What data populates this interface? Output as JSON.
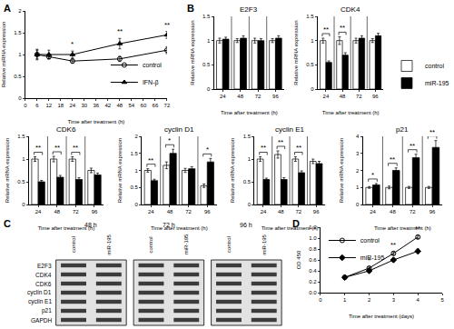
{
  "chart_data": [
    {
      "panel_label": "A",
      "type": "line",
      "x_label": "Time after treatment (h)",
      "y_label": "Relative miRNA expression",
      "x": [
        6,
        12,
        24,
        48,
        72
      ],
      "xlim": [
        0,
        72
      ],
      "xticks": [
        0,
        6,
        12,
        18,
        24,
        30,
        36,
        42,
        48,
        54,
        60,
        66,
        72
      ],
      "ylim": [
        0,
        2
      ],
      "yticks": [
        0,
        0.5,
        1,
        1.5,
        2
      ],
      "legend": "lower right",
      "significance": [
        null,
        null,
        "*",
        "**",
        "**"
      ],
      "series": [
        {
          "name": "control",
          "color": "#000000",
          "marker": "circle-open",
          "values": [
            1.0,
            0.95,
            0.85,
            0.9,
            1.1
          ],
          "error": [
            0.1,
            0.05,
            0.05,
            0.06,
            0.08
          ]
        },
        {
          "name": "IFN-β",
          "color": "#000000",
          "marker": "triangle-up",
          "values": [
            1.0,
            1.0,
            1.0,
            1.25,
            1.45
          ],
          "error": [
            0.12,
            0.1,
            0.08,
            0.12,
            0.08
          ]
        }
      ]
    },
    {
      "panel_label": "B",
      "type": "bar",
      "title": "E2F3",
      "x_label": "Time after treatment (h)",
      "y_label": "Relative mRNA expression",
      "categories": [
        "24",
        "48",
        "72",
        "96"
      ],
      "ylim": [
        0,
        1.5
      ],
      "yticks": [
        0,
        0.5,
        1,
        1.5
      ],
      "series": [
        {
          "name": "control",
          "color": "#ffffff",
          "values": [
            1,
            1,
            1,
            1
          ],
          "error": [
            0.05,
            0.04,
            0.05,
            0.04
          ]
        },
        {
          "name": "miR-195",
          "color": "#000000",
          "values": [
            1.03,
            1.05,
            1.0,
            1.05
          ],
          "error": [
            0.04,
            0.05,
            0.04,
            0.05
          ]
        }
      ]
    },
    {
      "type": "bar",
      "title": "CDK4",
      "x_label": "Time after treatment (h)",
      "y_label": "Relative mRNA expression",
      "categories": [
        "24",
        "48",
        "72",
        "96"
      ],
      "ylim": [
        0,
        1.5
      ],
      "yticks": [
        0,
        0.5,
        1,
        1.5
      ],
      "legend": "right",
      "significance": [
        "**",
        "**",
        null,
        null
      ],
      "series": [
        {
          "name": "control",
          "color": "#ffffff",
          "values": [
            1,
            1,
            1,
            1
          ],
          "error": [
            0.05,
            0.08,
            0.05,
            0.04
          ]
        },
        {
          "name": "miR-195",
          "color": "#000000",
          "values": [
            0.55,
            0.7,
            1.05,
            1.1
          ],
          "error": [
            0.03,
            0.05,
            0.05,
            0.05
          ]
        }
      ]
    },
    {
      "type": "bar",
      "title": "CDK6",
      "x_label": "Time after treatment (h)",
      "y_label": "Relative mRNA expression",
      "categories": [
        "24",
        "48",
        "72",
        "96"
      ],
      "ylim": [
        0,
        1.5
      ],
      "yticks": [
        0,
        0.5,
        1,
        1.5
      ],
      "significance": [
        "**",
        "**",
        "**",
        null
      ],
      "series": [
        {
          "name": "control",
          "color": "#ffffff",
          "values": [
            1,
            1,
            1,
            0.75
          ],
          "error": [
            0.05,
            0.06,
            0.05,
            0.05
          ]
        },
        {
          "name": "miR-195",
          "color": "#000000",
          "values": [
            0.5,
            0.6,
            0.55,
            0.65
          ],
          "error": [
            0.03,
            0.04,
            0.04,
            0.04
          ]
        }
      ]
    },
    {
      "type": "bar",
      "title": "cyclin D1",
      "x_label": "Time after treatment (h)",
      "y_label": "Relative mRNA expression",
      "categories": [
        "24",
        "48",
        "72",
        "96"
      ],
      "ylim": [
        0,
        2
      ],
      "yticks": [
        0,
        0.5,
        1,
        1.5,
        2
      ],
      "significance": [
        "**",
        "*",
        null,
        "*"
      ],
      "series": [
        {
          "name": "control",
          "color": "#ffffff",
          "values": [
            1,
            1.15,
            1,
            0.55
          ],
          "error": [
            0.05,
            0.1,
            0.06,
            0.05
          ]
        },
        {
          "name": "miR-195",
          "color": "#000000",
          "values": [
            0.7,
            1.5,
            1.05,
            1.25
          ],
          "error": [
            0.04,
            0.12,
            0.06,
            0.1
          ]
        }
      ]
    },
    {
      "type": "bar",
      "title": "cyclin E1",
      "x_label": "Time after treatment (h)",
      "y_label": "Relative mRNA expression",
      "categories": [
        "24",
        "48",
        "72",
        "96"
      ],
      "ylim": [
        0,
        1.5
      ],
      "yticks": [
        0,
        0.5,
        1,
        1.5
      ],
      "significance": [
        "**",
        "**",
        "**",
        null
      ],
      "series": [
        {
          "name": "control",
          "color": "#ffffff",
          "values": [
            1,
            1.1,
            1,
            0.95
          ],
          "error": [
            0.05,
            0.08,
            0.05,
            0.05
          ]
        },
        {
          "name": "miR-195",
          "color": "#000000",
          "values": [
            0.55,
            0.55,
            0.7,
            0.9
          ],
          "error": [
            0.03,
            0.04,
            0.04,
            0.05
          ]
        }
      ]
    },
    {
      "type": "bar",
      "title": "p21",
      "x_label": "Time after treatment (h)",
      "y_label": "Relative mRNA expression",
      "categories": [
        "24",
        "48",
        "72",
        "96"
      ],
      "ylim": [
        0,
        4
      ],
      "yticks": [
        0,
        1,
        2,
        3,
        4
      ],
      "significance": [
        "*",
        "**",
        "**",
        "**"
      ],
      "series": [
        {
          "name": "control",
          "color": "#ffffff",
          "values": [
            1,
            1,
            1,
            1
          ],
          "error": [
            0.05,
            0.08,
            0.06,
            0.06
          ]
        },
        {
          "name": "miR-195",
          "color": "#000000",
          "values": [
            1.15,
            2.0,
            2.75,
            3.35
          ],
          "error": [
            0.08,
            0.15,
            0.2,
            0.4
          ]
        }
      ]
    },
    {
      "panel_label": "D",
      "type": "line",
      "x_label": "Time after treatment (days)",
      "y_label": "OD 450",
      "x": [
        1,
        2,
        3,
        4
      ],
      "xlim": [
        0,
        5
      ],
      "xticks": [
        0,
        1,
        2,
        3,
        4,
        5
      ],
      "ylim": [
        0,
        1.2
      ],
      "yticks": [
        {
          "value": 0,
          "label": "0.0"
        },
        {
          "value": 0.2,
          "label": "0.2"
        },
        {
          "value": 0.4,
          "label": "0.4"
        },
        {
          "value": 0.6,
          "label": "0.6"
        },
        {
          "value": 0.8,
          "label": "0.8"
        },
        {
          "value": 1,
          "label": "1.0"
        },
        {
          "value": 1.2,
          "label": "1.2"
        }
      ],
      "legend": "upper left",
      "significance": [
        null,
        "*",
        "**",
        "**"
      ],
      "series": [
        {
          "name": "control",
          "color": "#000000",
          "marker": "circle-open",
          "values": [
            0.28,
            0.45,
            0.72,
            1.02
          ],
          "error": [
            0.01,
            0.02,
            0.03,
            0.03
          ]
        },
        {
          "name": "miR-195",
          "color": "#000000",
          "marker": "diamond",
          "values": [
            0.28,
            0.4,
            0.6,
            0.76
          ],
          "error": [
            0.01,
            0.02,
            0.03,
            0.04
          ]
        }
      ]
    }
  ],
  "blot": {
    "panel_label": "C",
    "times": [
      "48 h",
      "72 h",
      "96 h"
    ],
    "lanes": [
      "control",
      "miR-195"
    ],
    "proteins": [
      "E2F3",
      "CDK4",
      "CDK6",
      "cyclin D1",
      "cyclin E1",
      "p21",
      "GAPDH"
    ]
  }
}
